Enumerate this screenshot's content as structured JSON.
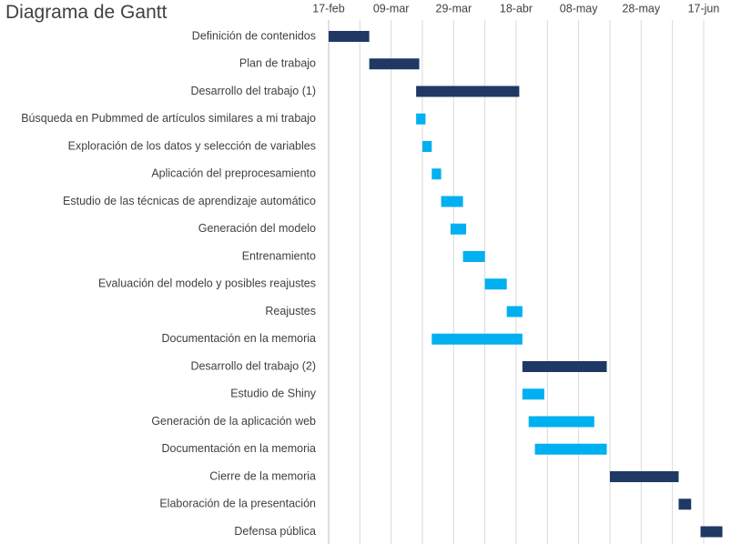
{
  "chart_data": {
    "type": "bar",
    "subtype": "gantt",
    "title": "Diagrama de Gantt",
    "x_axis": {
      "type": "date",
      "position": "top",
      "range": [
        "2019-02-17",
        "2019-06-24"
      ],
      "ticks": [
        {
          "date": "2019-02-17",
          "label": "17-feb"
        },
        {
          "date": "2019-03-09",
          "label": "09-mar"
        },
        {
          "date": "2019-03-29",
          "label": "29-mar"
        },
        {
          "date": "2019-04-18",
          "label": "18-abr"
        },
        {
          "date": "2019-05-08",
          "label": "08-may"
        },
        {
          "date": "2019-05-28",
          "label": "28-may"
        },
        {
          "date": "2019-06-17",
          "label": "17-jun"
        }
      ],
      "minor_gridline_days": 10
    },
    "grid": true,
    "legend": "none",
    "colors": {
      "phase": "#203864",
      "task": "#00b0f0",
      "grid": "#d9d9d9",
      "text": "#404040"
    },
    "tasks": [
      {
        "name": "Definición de contenidos",
        "start": "2019-02-17",
        "end": "2019-03-02",
        "kind": "phase"
      },
      {
        "name": "Plan de trabajo",
        "start": "2019-03-02",
        "end": "2019-03-18",
        "kind": "phase"
      },
      {
        "name": "Desarrollo del trabajo (1)",
        "start": "2019-03-17",
        "end": "2019-04-19",
        "kind": "phase"
      },
      {
        "name": "Búsqueda en Pubmmed de artículos similares a mi trabajo",
        "start": "2019-03-17",
        "end": "2019-03-20",
        "kind": "task"
      },
      {
        "name": "Exploración de los datos y selección de variables",
        "start": "2019-03-19",
        "end": "2019-03-22",
        "kind": "task"
      },
      {
        "name": "Aplicación del preprocesamiento",
        "start": "2019-03-22",
        "end": "2019-03-25",
        "kind": "task"
      },
      {
        "name": "Estudio de las técnicas de aprendizaje automático",
        "start": "2019-03-25",
        "end": "2019-04-01",
        "kind": "task"
      },
      {
        "name": "Generación del modelo",
        "start": "2019-03-28",
        "end": "2019-04-02",
        "kind": "task"
      },
      {
        "name": "Entrenamiento",
        "start": "2019-04-01",
        "end": "2019-04-08",
        "kind": "task"
      },
      {
        "name": "Evaluación del modelo y posibles reajustes",
        "start": "2019-04-08",
        "end": "2019-04-15",
        "kind": "task"
      },
      {
        "name": "Reajustes",
        "start": "2019-04-15",
        "end": "2019-04-20",
        "kind": "task"
      },
      {
        "name": "Documentación en la memoria",
        "start": "2019-03-22",
        "end": "2019-04-20",
        "kind": "task"
      },
      {
        "name": "Desarrollo del trabajo (2)",
        "start": "2019-04-20",
        "end": "2019-05-17",
        "kind": "phase"
      },
      {
        "name": "Estudio de Shiny",
        "start": "2019-04-20",
        "end": "2019-04-27",
        "kind": "task"
      },
      {
        "name": "Generación de la aplicación web",
        "start": "2019-04-22",
        "end": "2019-05-13",
        "kind": "task"
      },
      {
        "name": "Documentación en la memoria",
        "start": "2019-04-24",
        "end": "2019-05-17",
        "kind": "task"
      },
      {
        "name": "Cierre de la memoria",
        "start": "2019-05-18",
        "end": "2019-06-09",
        "kind": "phase"
      },
      {
        "name": "Elaboración de la presentación",
        "start": "2019-06-09",
        "end": "2019-06-13",
        "kind": "phase"
      },
      {
        "name": "Defensa pública",
        "start": "2019-06-16",
        "end": "2019-06-23",
        "kind": "phase"
      }
    ]
  }
}
